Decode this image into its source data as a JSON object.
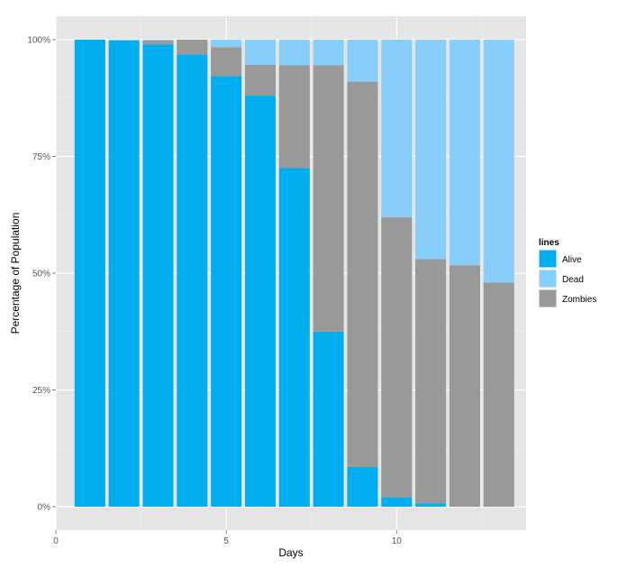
{
  "chart_data": {
    "type": "bar",
    "stacked": true,
    "percent": true,
    "xlabel": "Days",
    "ylabel": "Percentage of Population",
    "x": [
      1,
      2,
      3,
      4,
      5,
      6,
      7,
      8,
      9,
      10,
      11,
      12,
      13
    ],
    "xlim": [
      0,
      13.8
    ],
    "ylim": [
      0,
      100
    ],
    "x_ticks": [
      0,
      5,
      10
    ],
    "x_tick_labels": [
      "0",
      "5",
      "10"
    ],
    "y_ticks": [
      0,
      25,
      50,
      75,
      100
    ],
    "y_tick_labels": [
      "0%",
      "25%",
      "50%",
      "75%",
      "100%"
    ],
    "grid": true,
    "legend": {
      "title": "lines",
      "position": "right"
    },
    "series": [
      {
        "name": "Alive",
        "color": "#00AEEF",
        "values": [
          100,
          99.8,
          99.0,
          96.8,
          92.2,
          88.0,
          72.5,
          37.5,
          8.5,
          2.0,
          0.7,
          0.0,
          0.0
        ]
      },
      {
        "name": "Zombies",
        "color": "#999999",
        "values": [
          0.0,
          0.0,
          0.8,
          3.2,
          6.2,
          6.6,
          22.0,
          57.0,
          82.5,
          60.0,
          52.3,
          51.7,
          48.0
        ]
      },
      {
        "name": "Dead",
        "color": "#87CEFA",
        "values": [
          0.0,
          0.2,
          0.2,
          0.0,
          1.6,
          5.4,
          5.5,
          5.5,
          9.0,
          38.0,
          47.0,
          48.3,
          52.0
        ]
      }
    ],
    "legend_order": [
      "Alive",
      "Dead",
      "Zombies"
    ]
  }
}
